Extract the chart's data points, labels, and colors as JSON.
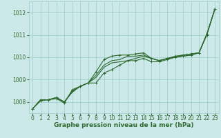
{
  "background_color": "#cce8e8",
  "plot_bg_color": "#cce8e8",
  "grid_color": "#99cccc",
  "line_color": "#2d6a2d",
  "xlabel": "Graphe pression niveau de la mer (hPa)",
  "xlabel_fontsize": 6.5,
  "ylim": [
    1007.5,
    1012.5
  ],
  "xlim": [
    -0.5,
    23.5
  ],
  "yticks": [
    1008,
    1009,
    1010,
    1011,
    1012
  ],
  "xticks": [
    0,
    1,
    2,
    3,
    4,
    5,
    6,
    7,
    8,
    9,
    10,
    11,
    12,
    13,
    14,
    15,
    16,
    17,
    18,
    19,
    20,
    21,
    22,
    23
  ],
  "series": [
    {
      "y": [
        1007.7,
        1008.05,
        1008.1,
        1008.15,
        1007.95,
        1008.55,
        1008.7,
        1008.85,
        1008.85,
        1009.3,
        1009.45,
        1009.65,
        1009.85,
        1009.85,
        1009.95,
        1009.8,
        1009.8,
        1009.9,
        1010.0,
        1010.05,
        1010.1,
        1010.2,
        1011.0,
        1012.15
      ],
      "marker": true,
      "lw": 0.8
    },
    {
      "y": [
        1007.7,
        1008.1,
        1008.1,
        1008.2,
        1008.0,
        1008.45,
        1008.7,
        1008.85,
        1009.2,
        1009.65,
        1009.85,
        1009.9,
        1010.05,
        1010.05,
        1010.1,
        1009.95,
        1009.85,
        1009.95,
        1010.0,
        1010.1,
        1010.15,
        1010.2,
        1011.05,
        1012.15
      ],
      "marker": false,
      "lw": 0.8
    },
    {
      "y": [
        1007.7,
        1008.1,
        1008.1,
        1008.2,
        1008.0,
        1008.5,
        1008.7,
        1008.85,
        1009.35,
        1009.9,
        1010.05,
        1010.1,
        1010.1,
        1010.15,
        1010.2,
        1009.95,
        1009.85,
        1009.95,
        1010.05,
        1010.1,
        1010.15,
        1010.2,
        1011.05,
        1012.15
      ],
      "marker": true,
      "lw": 0.8
    },
    {
      "y": [
        1007.7,
        1008.1,
        1008.1,
        1008.2,
        1008.0,
        1008.45,
        1008.7,
        1008.85,
        1009.1,
        1009.55,
        1009.75,
        1009.8,
        1009.85,
        1009.95,
        1010.05,
        1009.95,
        1009.85,
        1009.95,
        1010.0,
        1010.05,
        1010.1,
        1010.2,
        1011.05,
        1012.15
      ],
      "marker": false,
      "lw": 0.8
    }
  ],
  "marker_size": 2.5,
  "tick_fontsize": 5.5,
  "figsize": [
    3.2,
    2.0
  ],
  "dpi": 100
}
